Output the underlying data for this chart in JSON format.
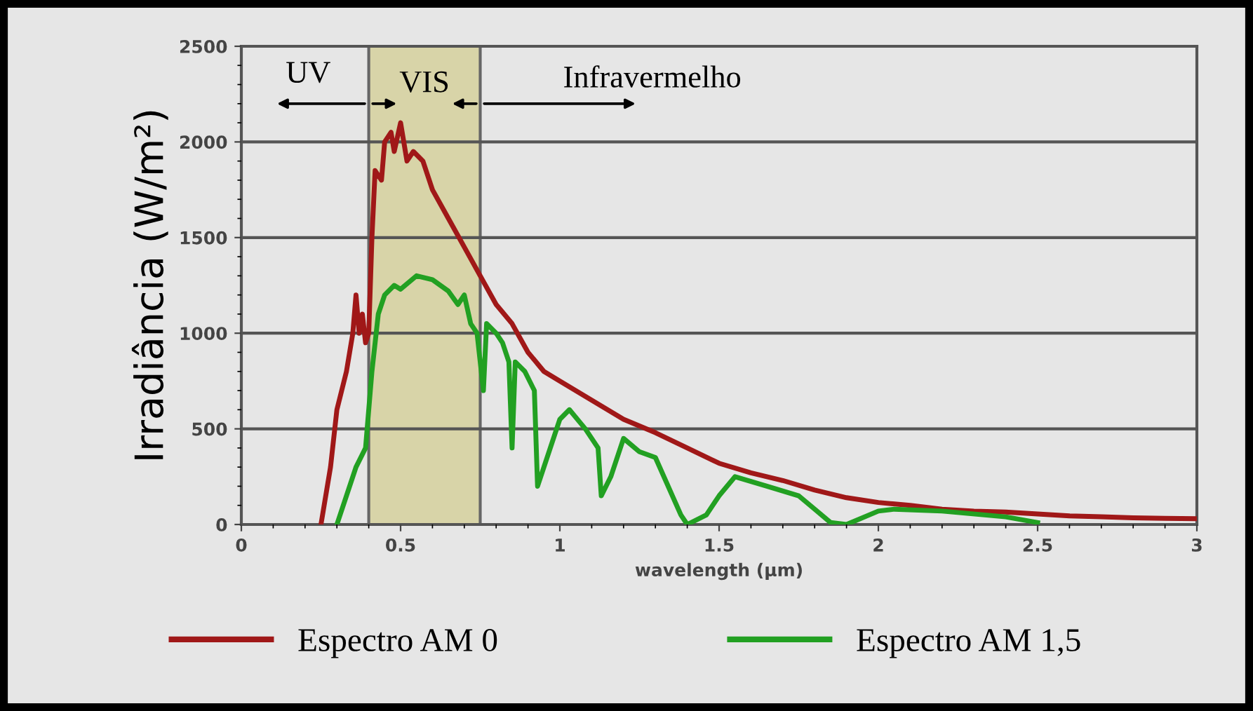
{
  "chart_data": {
    "type": "line",
    "xlabel": "wavelength (µm)",
    "ylabel": "Irradiância (W/m²)",
    "xlim": [
      0,
      3
    ],
    "xticks": [
      0,
      0.5,
      1,
      1.5,
      2,
      2.5,
      3
    ],
    "ylim": [
      0,
      2500
    ],
    "yticks": [
      0,
      500,
      1000,
      1500,
      2000,
      2500
    ],
    "grid": "y",
    "legend": "bottom",
    "marker": "none",
    "line_style": "solid",
    "bands": [
      {
        "axis": "x",
        "from": 0.4,
        "to": 0.75,
        "label": "VIS",
        "color": "#d8d4a8"
      }
    ],
    "annotations": [
      "UV",
      "Infravermelho"
    ],
    "series": [
      {
        "name": "Espectro AM 0",
        "color": "#a01818",
        "x": [
          0.25,
          0.28,
          0.3,
          0.33,
          0.35,
          0.36,
          0.37,
          0.38,
          0.39,
          0.4,
          0.41,
          0.42,
          0.44,
          0.45,
          0.47,
          0.48,
          0.5,
          0.52,
          0.54,
          0.57,
          0.6,
          0.65,
          0.7,
          0.75,
          0.8,
          0.85,
          0.9,
          0.95,
          1.0,
          1.1,
          1.2,
          1.3,
          1.4,
          1.5,
          1.6,
          1.7,
          1.8,
          1.9,
          2.0,
          2.1,
          2.2,
          2.3,
          2.4,
          2.5,
          2.6,
          2.7,
          2.8,
          2.9,
          3.0
        ],
        "values": [
          0,
          300,
          600,
          800,
          1000,
          1200,
          1000,
          1100,
          950,
          1000,
          1500,
          1850,
          1800,
          2000,
          2050,
          1950,
          2100,
          1900,
          1950,
          1900,
          1750,
          1600,
          1450,
          1300,
          1150,
          1050,
          900,
          800,
          750,
          650,
          550,
          480,
          400,
          320,
          270,
          230,
          180,
          140,
          115,
          100,
          80,
          70,
          65,
          55,
          45,
          40,
          35,
          32,
          30
        ]
      },
      {
        "name": "Espectro AM 1,5",
        "color": "#22a022",
        "x": [
          0.3,
          0.33,
          0.36,
          0.39,
          0.41,
          0.43,
          0.45,
          0.48,
          0.5,
          0.55,
          0.6,
          0.65,
          0.68,
          0.7,
          0.72,
          0.74,
          0.76,
          0.77,
          0.8,
          0.82,
          0.84,
          0.85,
          0.86,
          0.89,
          0.92,
          0.93,
          0.95,
          1.0,
          1.03,
          1.08,
          1.12,
          1.13,
          1.16,
          1.2,
          1.25,
          1.3,
          1.38,
          1.4,
          1.46,
          1.5,
          1.55,
          1.65,
          1.75,
          1.8,
          1.85,
          1.9,
          2.0,
          2.05,
          2.2,
          2.4,
          2.5
        ],
        "values": [
          0,
          150,
          300,
          400,
          800,
          1100,
          1200,
          1250,
          1230,
          1300,
          1280,
          1220,
          1150,
          1200,
          1050,
          1000,
          700,
          1050,
          1000,
          950,
          850,
          400,
          850,
          800,
          700,
          200,
          300,
          550,
          600,
          500,
          400,
          150,
          250,
          450,
          380,
          350,
          50,
          0,
          50,
          150,
          250,
          200,
          150,
          80,
          10,
          0,
          70,
          80,
          70,
          40,
          10
        ]
      }
    ]
  }
}
